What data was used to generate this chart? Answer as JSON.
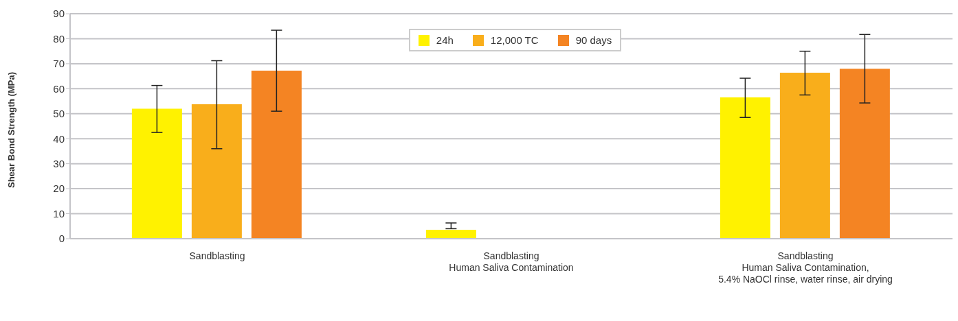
{
  "chart_data": {
    "type": "bar",
    "ylabel": "Shear Bond Strength (MPa)",
    "categories": [
      "Sandblasting",
      "Sandblasting\nHuman Saliva Contamination",
      "Sandblasting\nHuman Saliva Contamination,\n5.4% NaOCl rinse, water rinse, air drying"
    ],
    "series": [
      {
        "name": "24h",
        "color": "#fff200",
        "values": [
          52,
          3.6,
          56.5
        ],
        "errors": [
          [
            42.5,
            61.3
          ],
          [
            4.0,
            6.3
          ],
          [
            48.5,
            64.2
          ]
        ]
      },
      {
        "name": "12,000 TC",
        "color": "#f9ae1b",
        "values": [
          53.8,
          0,
          66.4
        ],
        "errors": [
          [
            36,
            71.2
          ],
          null,
          [
            57.5,
            75
          ]
        ]
      },
      {
        "name": "90 days",
        "color": "#f48423",
        "values": [
          67.2,
          0,
          68
        ],
        "errors": [
          [
            51,
            83.4
          ],
          null,
          [
            54.3,
            81.7
          ]
        ]
      }
    ],
    "ylim": [
      0,
      90
    ],
    "yticks": [
      0,
      10,
      20,
      30,
      40,
      50,
      60,
      70,
      80,
      90
    ],
    "grid": "y",
    "legend": "top"
  }
}
